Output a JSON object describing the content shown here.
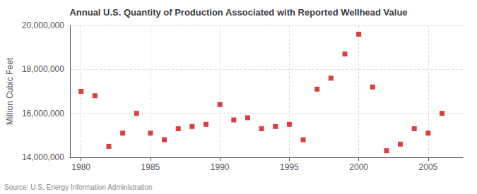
{
  "chart_data": {
    "type": "scatter",
    "title": "Annual U.S. Quantity of Production Associated with Reported Wellhead Value",
    "ylabel": "Million Cubic Feet",
    "source": "Source: U.S. Energy Information Administration",
    "color": "#CC1111",
    "marker": "square",
    "x": [
      1980,
      1981,
      1982,
      1983,
      1984,
      1985,
      1986,
      1987,
      1988,
      1989,
      1990,
      1991,
      1992,
      1993,
      1994,
      1995,
      1996,
      1997,
      1998,
      1999,
      2000,
      2001,
      2002,
      2003,
      2004,
      2005,
      2006
    ],
    "values": [
      17000000,
      16800000,
      14500000,
      15100000,
      16000000,
      15100000,
      14800000,
      15300000,
      15400000,
      15500000,
      16400000,
      15700000,
      15800000,
      15300000,
      15400000,
      15500000,
      14800000,
      17100000,
      17600000,
      18700000,
      19600000,
      17200000,
      14300000,
      14600000,
      15300000,
      15100000,
      16000000
    ],
    "xlim": [
      1979.2,
      2007.5
    ],
    "xticks": [
      1980,
      1985,
      1990,
      1995,
      2000,
      2005
    ],
    "ylim": [
      14000000,
      20000000
    ],
    "yticks": [
      {
        "value": 14000000,
        "label": "14,000,000"
      },
      {
        "value": 16000000,
        "label": "16,000,000"
      },
      {
        "value": 18000000,
        "label": "18,000,000"
      },
      {
        "value": 20000000,
        "label": "20,000,000"
      }
    ],
    "grid": true
  }
}
